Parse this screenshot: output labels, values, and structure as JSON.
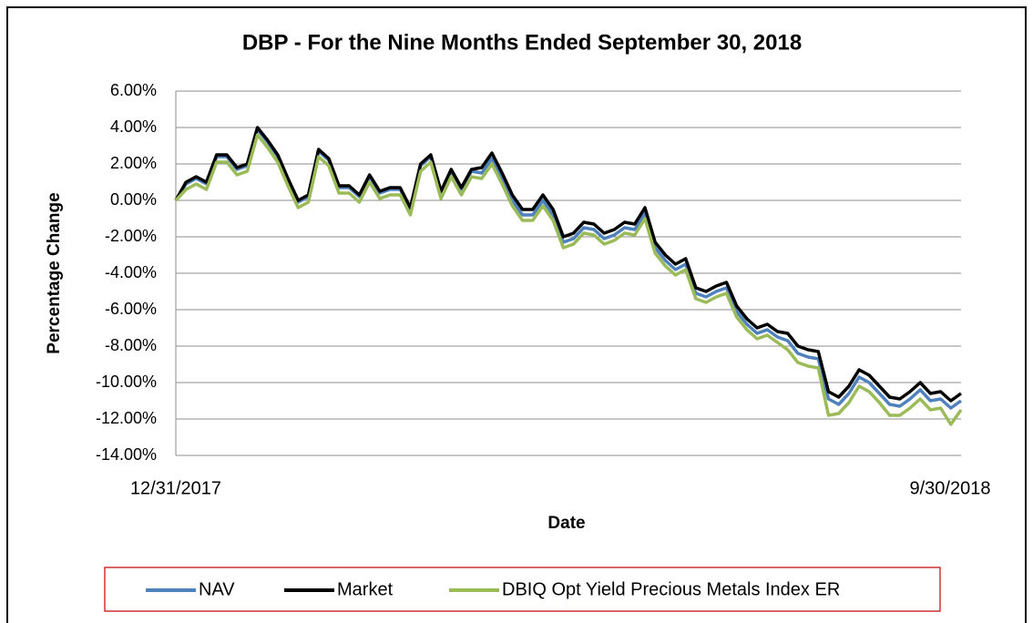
{
  "chart_data": {
    "type": "line",
    "title": "DBP - For the Nine Months Ended September 30, 2018",
    "xlabel": "Date",
    "ylabel": "Percentage Change",
    "categories": [
      "12/31/2017",
      null,
      null,
      null,
      null,
      null,
      null,
      null,
      null,
      null,
      null,
      null,
      null,
      null,
      null,
      null,
      null,
      null,
      null,
      null,
      null,
      null,
      null,
      null,
      null,
      null,
      null,
      null,
      null,
      null,
      null,
      null,
      null,
      null,
      null,
      null,
      null,
      null,
      null,
      null,
      null,
      null,
      null,
      null,
      null,
      null,
      null,
      null,
      null,
      null,
      null,
      null,
      null,
      null,
      null,
      null,
      null,
      null,
      null,
      null,
      null,
      null,
      null,
      null,
      null,
      null,
      null,
      null,
      null,
      null,
      null,
      null,
      null,
      null,
      null,
      null,
      null,
      "9/30/2018"
    ],
    "series": [
      {
        "name": "NAV",
        "color": "#4f81bd",
        "values": [
          0,
          0.9,
          1.2,
          0.9,
          2.4,
          2.4,
          1.7,
          1.9,
          3.9,
          3.2,
          2.4,
          1.1,
          -0.1,
          0.2,
          2.7,
          2.2,
          0.7,
          0.7,
          0.2,
          1.3,
          0.4,
          0.6,
          0.6,
          -0.5,
          1.9,
          2.4,
          0.4,
          1.6,
          0.6,
          1.6,
          1.5,
          2.3,
          1.2,
          0,
          -0.8,
          -0.8,
          0,
          -0.8,
          -2.3,
          -2.1,
          -1.5,
          -1.6,
          -2.1,
          -1.9,
          -1.5,
          -1.6,
          -0.7,
          -2.6,
          -3.3,
          -3.8,
          -3.5,
          -5.1,
          -5.3,
          -5.0,
          -4.8,
          -6.1,
          -6.8,
          -7.3,
          -7.1,
          -7.5,
          -7.7,
          -8.4,
          -8.6,
          -8.7,
          -10.9,
          -11.2,
          -10.6,
          -9.7,
          -10.0,
          -10.6,
          -11.2,
          -11.3,
          -10.9,
          -10.4,
          -11.0,
          -10.9,
          -11.4,
          -11.0
        ]
      },
      {
        "name": "Market",
        "color": "#000000",
        "values": [
          0,
          1.0,
          1.3,
          1.0,
          2.5,
          2.5,
          1.8,
          2.0,
          4.0,
          3.3,
          2.5,
          1.2,
          0,
          0.3,
          2.8,
          2.3,
          0.8,
          0.8,
          0.3,
          1.4,
          0.5,
          0.7,
          0.7,
          -0.4,
          2.0,
          2.5,
          0.5,
          1.7,
          0.7,
          1.7,
          1.8,
          2.6,
          1.5,
          0.3,
          -0.5,
          -0.5,
          0.3,
          -0.5,
          -2.0,
          -1.8,
          -1.2,
          -1.3,
          -1.8,
          -1.6,
          -1.2,
          -1.3,
          -0.4,
          -2.3,
          -3.0,
          -3.5,
          -3.2,
          -4.8,
          -5.0,
          -4.7,
          -4.5,
          -5.8,
          -6.5,
          -7.0,
          -6.8,
          -7.2,
          -7.3,
          -8.0,
          -8.2,
          -8.3,
          -10.5,
          -10.8,
          -10.2,
          -9.3,
          -9.6,
          -10.2,
          -10.8,
          -10.9,
          -10.5,
          -10.0,
          -10.6,
          -10.5,
          -11.0,
          -10.6
        ]
      },
      {
        "name": "DBIQ Opt Yield Precious Metals Index ER",
        "color": "#9bbb59",
        "values": [
          0,
          0.6,
          0.9,
          0.6,
          2.1,
          2.1,
          1.4,
          1.6,
          3.6,
          2.9,
          2.1,
          0.8,
          -0.4,
          -0.1,
          2.4,
          1.9,
          0.4,
          0.4,
          -0.1,
          1.0,
          0.1,
          0.3,
          0.3,
          -0.8,
          1.6,
          2.1,
          0.1,
          1.3,
          0.3,
          1.3,
          1.2,
          2.0,
          0.9,
          -0.3,
          -1.1,
          -1.1,
          -0.3,
          -1.1,
          -2.6,
          -2.4,
          -1.8,
          -1.9,
          -2.4,
          -2.2,
          -1.8,
          -1.9,
          -1.0,
          -2.9,
          -3.6,
          -4.1,
          -3.8,
          -5.4,
          -5.6,
          -5.3,
          -5.1,
          -6.4,
          -7.1,
          -7.6,
          -7.4,
          -7.8,
          -8.2,
          -8.9,
          -9.1,
          -9.2,
          -11.8,
          -11.7,
          -11.1,
          -10.2,
          -10.5,
          -11.1,
          -11.8,
          -11.8,
          -11.4,
          -10.9,
          -11.5,
          -11.4,
          -12.3,
          -11.5
        ]
      }
    ],
    "ylim": [
      -14,
      6
    ],
    "yticks": [
      {
        "value": -14,
        "label": "-14.00%"
      },
      {
        "value": -12,
        "label": "-12.00%"
      },
      {
        "value": -10,
        "label": "-10.00%"
      },
      {
        "value": -8,
        "label": "-8.00%"
      },
      {
        "value": -6,
        "label": "-6.00%"
      },
      {
        "value": -4,
        "label": "-4.00%"
      },
      {
        "value": -2,
        "label": "-2.00%"
      },
      {
        "value": 0,
        "label": "0.00%"
      },
      {
        "value": 2,
        "label": "2.00%"
      },
      {
        "value": 4,
        "label": "4.00%"
      },
      {
        "value": 6,
        "label": "6.00%"
      }
    ],
    "grid": true,
    "legend": "bottom"
  }
}
